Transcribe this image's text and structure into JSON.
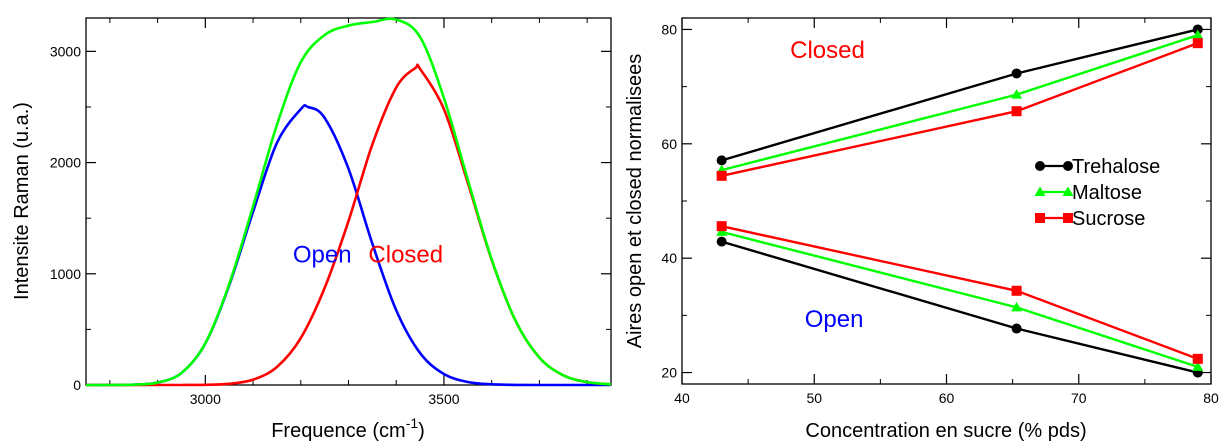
{
  "chart_data": [
    {
      "type": "line",
      "xlabel": "Frequence (cm",
      "xlabel_sup": "-1",
      "xlabel_end": ")",
      "ylabel": "Intensite Raman (u.a.)",
      "xlim": [
        2750,
        3850
      ],
      "ylim": [
        0,
        3300
      ],
      "xticks": [
        3000,
        3500
      ],
      "yticks": [
        0,
        1000,
        2000,
        3000
      ],
      "grid": false,
      "series": [
        {
          "color": "#0000ff",
          "x": [
            2750,
            2800,
            2850,
            2900,
            2950,
            3000,
            3050,
            3100,
            3150,
            3200,
            3215,
            3250,
            3300,
            3350,
            3400,
            3450,
            3500,
            3550,
            3600,
            3650,
            3700,
            3750,
            3800,
            3850
          ],
          "y": [
            0,
            0,
            3,
            22,
            108,
            373,
            896,
            1558,
            2177,
            2480,
            2500,
            2402,
            1944,
            1271,
            672,
            287,
            99,
            27,
            6,
            1,
            0,
            0,
            0,
            0
          ]
        },
        {
          "color": "#ff0000",
          "x": [
            2750,
            2800,
            2850,
            2900,
            2950,
            3000,
            3050,
            3100,
            3150,
            3200,
            3250,
            3300,
            3350,
            3400,
            3440,
            3450,
            3500,
            3550,
            3600,
            3650,
            3700,
            3750,
            3800,
            3850
          ],
          "y": [
            0,
            0,
            0,
            0,
            0,
            2,
            11,
            48,
            162,
            422,
            873,
            1474,
            2163,
            2675,
            2850,
            2842,
            2480,
            1818,
            1124,
            577,
            246,
            87,
            26,
            6
          ]
        },
        {
          "color": "#00ff00",
          "x": [
            2750,
            2800,
            2850,
            2900,
            2950,
            3000,
            3050,
            3100,
            3150,
            3200,
            3250,
            3300,
            3350,
            3400,
            3450,
            3500,
            3550,
            3600,
            3650,
            3700,
            3750,
            3800,
            3850
          ],
          "y": [
            0,
            0,
            3,
            22,
            108,
            375,
            907,
            1606,
            2339,
            2902,
            3147,
            3232,
            3264,
            3286,
            3129,
            2579,
            1845,
            1130,
            578,
            246,
            87,
            26,
            6
          ]
        }
      ],
      "annotations": [
        {
          "text": "Open",
          "x": 3245,
          "y": 1100,
          "color": "#0000ff"
        },
        {
          "text": "Closed",
          "x": 3420,
          "y": 1100,
          "color": "#ff0000"
        }
      ]
    },
    {
      "type": "line",
      "xlabel": "Concentration en sucre (% pds)",
      "ylabel": "Aires open et closed normalisees",
      "xlim": [
        40,
        80
      ],
      "ylim": [
        18,
        82
      ],
      "xticks": [
        40,
        50,
        60,
        70,
        80
      ],
      "yticks": [
        20,
        40,
        60,
        80
      ],
      "grid": false,
      "legend_position": "right",
      "legend": [
        {
          "name": "Trehalose",
          "color": "#000000",
          "marker": "circle"
        },
        {
          "name": "Maltose",
          "color": "#00ff00",
          "marker": "triangle"
        },
        {
          "name": "Sucrose",
          "color": "#ff0000",
          "marker": "square"
        }
      ],
      "series": [
        {
          "legend": 0,
          "group": "closed",
          "x": [
            43,
            65.3,
            79
          ],
          "y": [
            57.1,
            72.3,
            80.0
          ]
        },
        {
          "legend": 1,
          "group": "closed",
          "x": [
            43,
            65.3,
            79
          ],
          "y": [
            55.4,
            68.6,
            79.0
          ]
        },
        {
          "legend": 2,
          "group": "closed",
          "x": [
            43,
            65.3,
            79
          ],
          "y": [
            54.4,
            65.7,
            77.6
          ]
        },
        {
          "legend": 0,
          "group": "open",
          "x": [
            43,
            65.3,
            79
          ],
          "y": [
            42.9,
            27.7,
            20.0
          ]
        },
        {
          "legend": 1,
          "group": "open",
          "x": [
            43,
            65.3,
            79
          ],
          "y": [
            44.6,
            31.4,
            21.0
          ]
        },
        {
          "legend": 2,
          "group": "open",
          "x": [
            43,
            65.3,
            79
          ],
          "y": [
            45.6,
            34.3,
            22.4
          ]
        }
      ],
      "annotations": [
        {
          "text": "Closed",
          "x": 51,
          "y": 75,
          "color": "#ff0000"
        },
        {
          "text": "Open",
          "x": 51.5,
          "y": 28,
          "color": "#0000ff"
        }
      ]
    }
  ]
}
